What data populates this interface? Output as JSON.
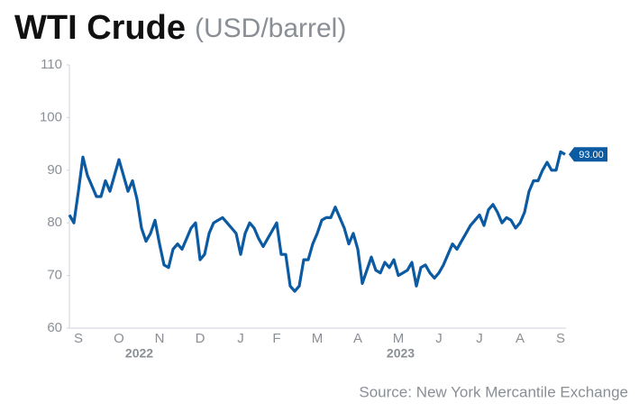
{
  "chart_data": {
    "type": "line",
    "title": "WTI Crude",
    "subtitle": "(USD/barrel)",
    "source": "Source: New York Mercantile Exchange",
    "color": "#0b5aa2",
    "ylim": [
      60,
      110
    ],
    "yticks": [
      60,
      70,
      80,
      90,
      100,
      110
    ],
    "grid": false,
    "categories": [
      null,
      null,
      "S",
      null,
      null,
      null,
      null,
      null,
      null,
      null,
      null,
      "O",
      null,
      null,
      null,
      null,
      null,
      null,
      null,
      null,
      "N",
      null,
      null,
      null,
      null,
      null,
      null,
      null,
      null,
      "D",
      null,
      null,
      null,
      null,
      null,
      null,
      null,
      null,
      "J",
      null,
      null,
      null,
      null,
      null,
      null,
      null,
      "F",
      null,
      null,
      null,
      null,
      null,
      null,
      null,
      null,
      "M",
      null,
      null,
      null,
      null,
      null,
      null,
      null,
      null,
      "A",
      null,
      null,
      null,
      null,
      null,
      null,
      null,
      null,
      "M",
      null,
      null,
      null,
      null,
      null,
      null,
      null,
      null,
      "J",
      null,
      null,
      null,
      null,
      null,
      null,
      null,
      null,
      "J",
      null,
      null,
      null,
      null,
      null,
      null,
      null,
      null,
      "A",
      null,
      null,
      null,
      null,
      null,
      null,
      null,
      null,
      "S",
      null
    ],
    "category_groups": [
      {
        "label": "2022",
        "start": 2,
        "end": 29
      },
      {
        "label": "2023",
        "start": 38,
        "end": 109
      }
    ],
    "values": [
      81.5,
      80,
      86,
      92.5,
      89,
      87,
      85,
      85,
      88,
      86,
      89,
      92,
      89,
      86,
      88,
      84.5,
      79,
      76.5,
      78,
      80.5,
      76,
      72,
      71.5,
      75,
      76,
      75,
      77,
      79,
      80,
      73,
      74,
      78,
      80,
      80.5,
      81,
      80,
      79,
      78,
      74,
      78,
      80,
      79,
      77,
      75.5,
      77,
      78.5,
      80,
      74,
      74,
      68,
      67,
      68,
      73,
      73,
      76,
      78,
      80.5,
      81,
      81,
      83,
      81,
      79,
      76,
      78,
      75,
      68.5,
      71,
      73.5,
      71,
      70.5,
      72.5,
      71.5,
      73,
      70,
      70.5,
      71,
      72.5,
      68,
      71.5,
      72,
      70.5,
      69.5,
      70.5,
      72,
      74,
      76,
      75,
      76.5,
      78,
      79.5,
      80.5,
      81.5,
      79.5,
      82.5,
      83.5,
      82,
      80,
      81,
      80.5,
      79,
      80,
      82,
      86,
      88,
      88,
      90,
      91.5,
      90,
      90,
      93.5,
      93
    ],
    "end_label": "93.00"
  }
}
